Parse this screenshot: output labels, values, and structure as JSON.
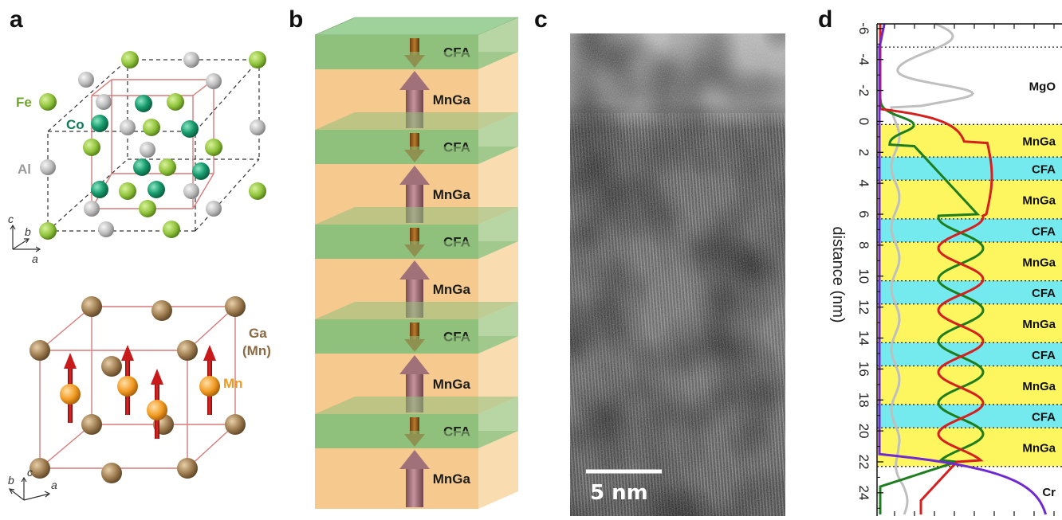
{
  "panels": {
    "a": {
      "label": "a",
      "top_structure": {
        "atoms": [
          "Fe",
          "Co",
          "Al"
        ],
        "axes": [
          "c",
          "b",
          "a"
        ]
      },
      "bottom_structure": {
        "atoms": [
          "Ga",
          "(Mn)",
          "Mn"
        ],
        "axes": [
          "b",
          "c",
          "a"
        ]
      }
    },
    "b": {
      "label": "b",
      "layers": [
        "CFA",
        "MnGa",
        "CFA",
        "MnGa",
        "CFA",
        "MnGa",
        "CFA",
        "MnGa",
        "CFA",
        "MnGa"
      ]
    },
    "c": {
      "label": "c",
      "scale_bar": "5 nm"
    },
    "d": {
      "label": "d",
      "ylabel": "distance (nm)",
      "yticks": [
        "-6",
        "-4",
        "-2",
        "0",
        "2",
        "4",
        "6",
        "8",
        "10",
        "12",
        "14",
        "16",
        "18",
        "20",
        "22",
        "24"
      ],
      "layers": [
        {
          "name": "MgO",
          "from": -4.8,
          "to": 0.2
        },
        {
          "name": "MnGa",
          "from": 0.2,
          "to": 2.3
        },
        {
          "name": "CFA",
          "from": 2.3,
          "to": 3.8
        },
        {
          "name": "MnGa",
          "from": 3.8,
          "to": 6.3
        },
        {
          "name": "CFA",
          "from": 6.3,
          "to": 7.8
        },
        {
          "name": "MnGa",
          "from": 7.8,
          "to": 10.3
        },
        {
          "name": "CFA",
          "from": 10.3,
          "to": 11.8
        },
        {
          "name": "MnGa",
          "from": 11.8,
          "to": 14.3
        },
        {
          "name": "CFA",
          "from": 14.3,
          "to": 15.8
        },
        {
          "name": "MnGa",
          "from": 15.8,
          "to": 18.3
        },
        {
          "name": "CFA",
          "from": 18.3,
          "to": 19.8
        },
        {
          "name": "MnGa",
          "from": 19.8,
          "to": 22.3
        },
        {
          "name": "Cr",
          "from": 22.3,
          "to": 25.5
        }
      ],
      "colors": {
        "MnGa": "#fdf65e",
        "CFA": "#74e9ee",
        "MgO": "#ffffff",
        "Cr": "#ffffff"
      }
    }
  },
  "colors": {
    "fe": "#8fc23b",
    "co": "#179b6e",
    "al": "#b9b9b9",
    "ga": "#9c7a4e",
    "mn": "#f19a22",
    "cfa_layer": "#7fb36a",
    "mnga_layer": "#f6c98e"
  }
}
